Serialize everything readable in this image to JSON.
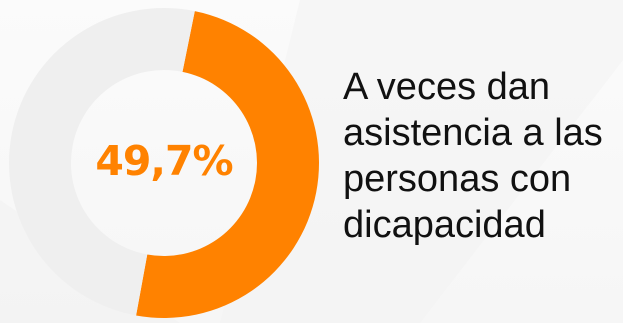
{
  "colors": {
    "highlight": "#ff8200",
    "remainder": "#efefef",
    "text": "#111111"
  },
  "chart_data": {
    "type": "pie",
    "style": "donut",
    "slices": [
      {
        "label": "A veces dan asistencia a las personas con dicapacidad",
        "value": 49.7
      },
      {
        "label": "",
        "value": 50.3
      }
    ],
    "center_label": "49,7%",
    "caption_lines": [
      "A veces dan",
      "asistencia a las",
      "personas con",
      "dicapacidad"
    ]
  }
}
